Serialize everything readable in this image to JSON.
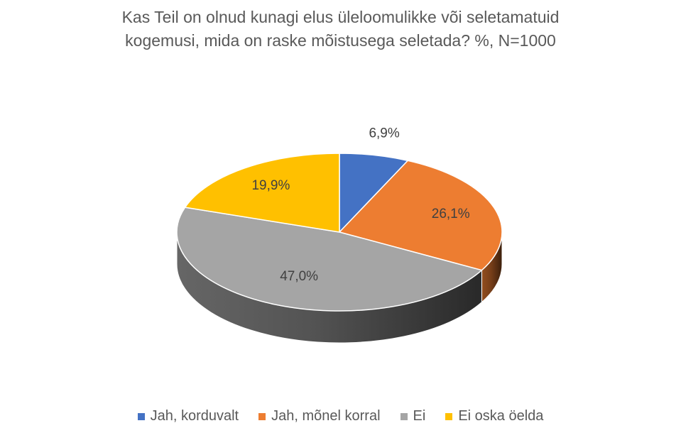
{
  "chart_data": {
    "type": "pie",
    "title_lines": [
      "Kas Teil on olnud kunagi elus üleloomulikke või seletamatuid",
      "kogemusi, mida on raske mõistusega seletada? %, N=1000"
    ],
    "slices": [
      {
        "name": "Jah, korduvalt",
        "value": 6.9,
        "label": "6,9%",
        "color": "#4472C4"
      },
      {
        "name": "Jah, mõnel korral",
        "value": 26.1,
        "label": "26,1%",
        "color": "#ED7D31"
      },
      {
        "name": "Ei",
        "value": 47.0,
        "label": "47,0%",
        "color": "#A5A5A5"
      },
      {
        "name": "Ei oska öelda",
        "value": 19.9,
        "label": "19,9%",
        "color": "#FFC000"
      }
    ],
    "style": "3d",
    "legend_position": "bottom"
  }
}
